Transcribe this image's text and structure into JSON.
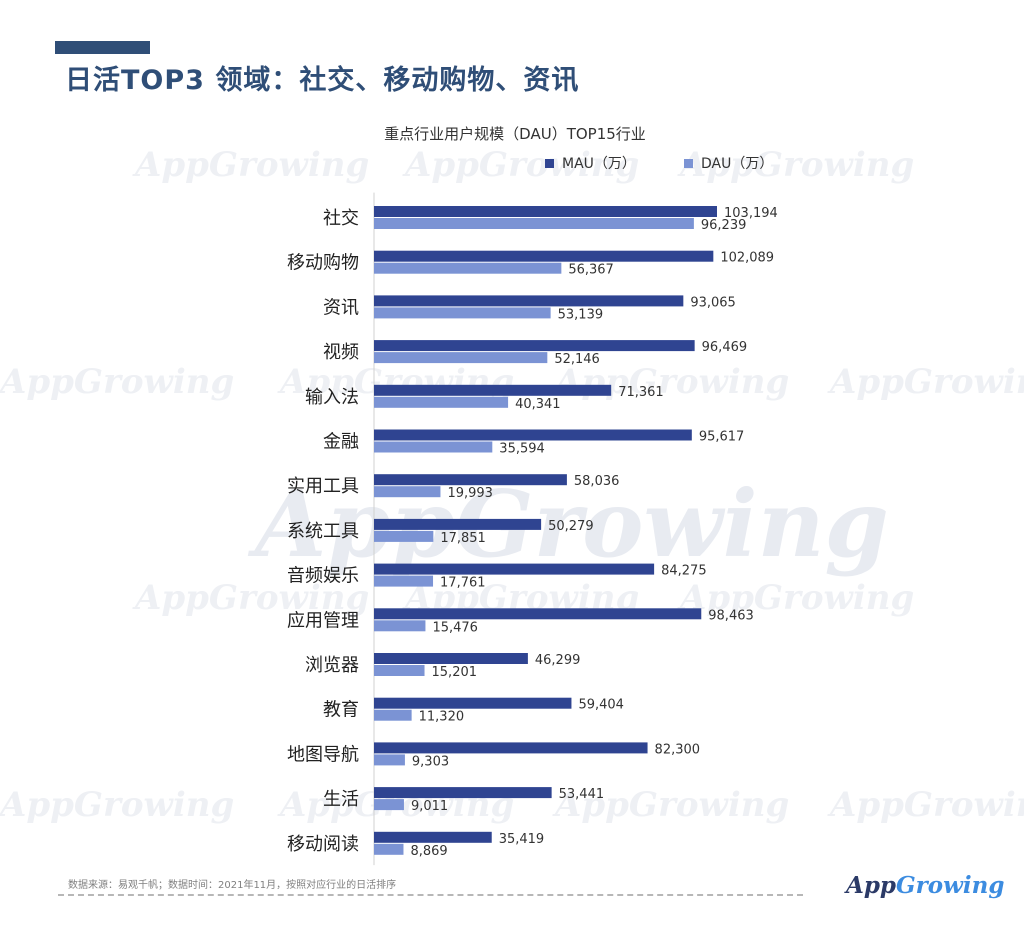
{
  "header": {
    "title": "日活TOP3 领域：社交、移动购物、资讯"
  },
  "watermark": {
    "text": "AppGrowing"
  },
  "chart_data": {
    "type": "bar",
    "orientation": "horizontal",
    "title": "重点行业用户规模（DAU）TOP15行业",
    "legend_position": "top-right",
    "xlabel": "",
    "ylabel": "",
    "xlim": [
      0,
      110000
    ],
    "categories": [
      "社交",
      "移动购物",
      "资讯",
      "视频",
      "输入法",
      "金融",
      "实用工具",
      "系统工具",
      "音频娱乐",
      "应用管理",
      "浏览器",
      "教育",
      "地图导航",
      "生活",
      "移动阅读"
    ],
    "series": [
      {
        "name": "MAU（万）",
        "color": "#2f4491",
        "values": [
          103194,
          102089,
          93065,
          96469,
          71361,
          95617,
          58036,
          50279,
          84275,
          98463,
          46299,
          59404,
          82300,
          53441,
          35419
        ],
        "labels": [
          "103,194",
          "102,089",
          "93,065",
          "96,469",
          "71,361",
          "95,617",
          "58,036",
          "50,279",
          "84,275",
          "98,463",
          "46,299",
          "59,404",
          "82,300",
          "53,441",
          "35,419"
        ]
      },
      {
        "name": "DAU（万）",
        "color": "#7b93d4",
        "values": [
          96239,
          56367,
          53139,
          52146,
          40341,
          35594,
          19993,
          17851,
          17761,
          15476,
          15201,
          11320,
          9303,
          9011,
          8869
        ],
        "labels": [
          "96,239",
          "56,367",
          "53,139",
          "52,146",
          "40,341",
          "35,594",
          "19,993",
          "17,851",
          "17,761",
          "15,476",
          "15,201",
          "11,320",
          "9,303",
          "9,011",
          "8,869"
        ]
      }
    ]
  },
  "footer": {
    "source_note": "数据来源：易观千帆；数据时间：2021年11月，按照对应行业的日活排序",
    "logo_text_a": "App",
    "logo_text_b": "Growing"
  }
}
